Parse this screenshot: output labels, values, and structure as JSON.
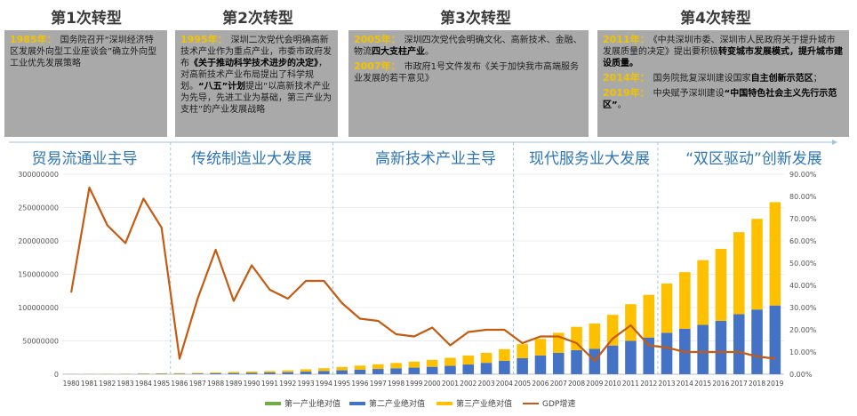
{
  "transitions": [
    {
      "title": "第1次转型",
      "paragraphs": [
        [
          {
            "t": "1985年：",
            "y": true
          },
          {
            "t": "国务院召开“深圳经济特区发展外向型工业座谈会”确立外向型工业优先发展策略"
          }
        ]
      ]
    },
    {
      "title": "第2次转型",
      "paragraphs": [
        [
          {
            "t": "1995年：",
            "y": true
          },
          {
            "t": "深圳二次党代会明确高新技术产业作为重点产业，市委市政府发布"
          },
          {
            "t": "《关于推动科学技术进步的决定》",
            "b": true
          },
          {
            "t": "，对高新技术产业布局提出了科学规划。"
          },
          {
            "t": "“八五”计划",
            "b": true
          },
          {
            "t": "提出“以高新技术产业为先导，先进工业为基础，第三产业为支柱”的产业发展战略"
          }
        ]
      ]
    },
    {
      "title": "第3次转型",
      "paragraphs": [
        [
          {
            "t": "2005年：",
            "y": true
          },
          {
            "t": "深圳四次党代会明确文化、高新技术、金融、物流"
          },
          {
            "t": "四大支柱产业",
            "b": true
          },
          {
            "t": "。"
          }
        ],
        [
          {
            "t": "2007年：",
            "y": true
          },
          {
            "t": "市政府1号文件发布《关于加快我市高端服务业发展的若干意见》"
          }
        ]
      ]
    },
    {
      "title": "第4次转型",
      "paragraphs": [
        [
          {
            "t": "2011年：",
            "y": true
          },
          {
            "t": "《中共深圳市委、深圳市人民政府关于提升城市发展质量的决定》提出要积极"
          },
          {
            "t": "转变城市发展模式，提升城市建设质量。",
            "b": true
          }
        ],
        [
          {
            "t": "2014年：",
            "y": true
          },
          {
            "t": "国务院批复深圳建设国家"
          },
          {
            "t": "自主创新示范区",
            "b": true
          },
          {
            "t": "；"
          }
        ],
        [
          {
            "t": "2019年：",
            "y": true
          },
          {
            "t": "中央赋予深圳建设"
          },
          {
            "t": "“中国特色社会主义先行示范区”",
            "b": true
          },
          {
            "t": "。"
          }
        ]
      ]
    }
  ],
  "phases": [
    "贸易流通业主导",
    "传统制造业大发展",
    "高新技术产业主导",
    "现代服务业大发展",
    "“双区驱动”创新发展"
  ],
  "colors": {
    "primary": "#70ad47",
    "secondary": "#4472c4",
    "tertiary": "#ffc000",
    "gdp": "#c55a11",
    "phase": "#2e75b6",
    "box": "#a9a9a9"
  },
  "chart_data": {
    "type": "bar",
    "stacked": true,
    "categories": [
      "1980",
      "1981",
      "1982",
      "1983",
      "1984",
      "1985",
      "1986",
      "1987",
      "1988",
      "1989",
      "1990",
      "1991",
      "1992",
      "1993",
      "1994",
      "1995",
      "1996",
      "1997",
      "1998",
      "1999",
      "2000",
      "2001",
      "2002",
      "2003",
      "2004",
      "2005",
      "2006",
      "2007",
      "2008",
      "2009",
      "2010",
      "2011",
      "2012",
      "2013",
      "2014",
      "2015",
      "2016",
      "2017",
      "2018",
      "2019"
    ],
    "series": [
      {
        "name": "第一产业绝对值",
        "axis": "left",
        "values": [
          100000,
          100000,
          100000,
          100000,
          100000,
          100000,
          100000,
          100000,
          100000,
          100000,
          100000,
          100000,
          100000,
          100000,
          100000,
          100000,
          100000,
          100000,
          100000,
          100000,
          100000,
          100000,
          100000,
          100000,
          100000,
          100000,
          100000,
          100000,
          100000,
          100000,
          100000,
          100000,
          100000,
          100000,
          100000,
          100000,
          100000,
          100000,
          100000,
          100000
        ]
      },
      {
        "name": "第二产业绝对值",
        "axis": "left",
        "values": [
          100000,
          150000,
          200000,
          300000,
          500000,
          700000,
          800000,
          1000000,
          1300000,
          1700000,
          2000000,
          2500000,
          3000000,
          3800000,
          4800000,
          5800000,
          6800000,
          7800000,
          8800000,
          9800000,
          11000000,
          12500000,
          14500000,
          17000000,
          20000000,
          24000000,
          28000000,
          32000000,
          36000000,
          38000000,
          43000000,
          50000000,
          55000000,
          62000000,
          68000000,
          74000000,
          80000000,
          90000000,
          97000000,
          103000000
        ]
      },
      {
        "name": "第三产业绝对值",
        "axis": "left",
        "values": [
          100000,
          150000,
          200000,
          300000,
          500000,
          700000,
          800000,
          1000000,
          1300000,
          1700000,
          2000000,
          2200000,
          2700000,
          3500000,
          4200000,
          5000000,
          6000000,
          7000000,
          8000000,
          9000000,
          10500000,
          12000000,
          13500000,
          15000000,
          17500000,
          21000000,
          25000000,
          30000000,
          35000000,
          38000000,
          46000000,
          55000000,
          64000000,
          74000000,
          85000000,
          97000000,
          108000000,
          123000000,
          136000000,
          155000000
        ]
      },
      {
        "name": "GDP增速",
        "axis": "right",
        "values": [
          37,
          84,
          67,
          59,
          79,
          66,
          7,
          34,
          56,
          33,
          49,
          38,
          34,
          42,
          42,
          32,
          25,
          24,
          18,
          17,
          21,
          13,
          19,
          20,
          20,
          14,
          17,
          17,
          14,
          6,
          16,
          22,
          13,
          12,
          10,
          10,
          10,
          10,
          8,
          7
        ]
      }
    ],
    "left_axis": {
      "ticks": [
        "0",
        "50000000",
        "100000000",
        "150000000",
        "200000000",
        "250000000",
        "300000000"
      ],
      "max": 300000000
    },
    "right_axis": {
      "ticks": [
        "0.00%",
        "10.00%",
        "20.00%",
        "30.00%",
        "40.00%",
        "50.00%",
        "60.00%",
        "70.00%",
        "80.00%",
        "90.00%"
      ],
      "max": 90
    },
    "dividers_at_years": [
      "1986",
      "1995",
      "2005",
      "2013"
    ],
    "legend": [
      "第一产业绝对值",
      "第二产业绝对值",
      "第三产业绝对值",
      "GDP增速"
    ]
  }
}
